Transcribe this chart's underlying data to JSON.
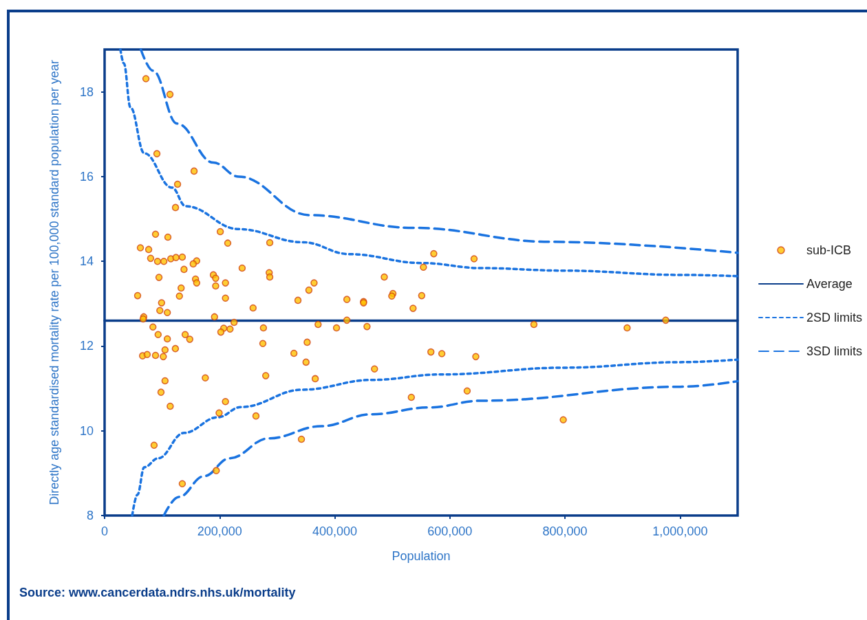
{
  "chart_data": {
    "type": "scatter",
    "xlabel": "Population",
    "ylabel": "Directly age standardised mortality rate per 100,000 standard population per year",
    "xlim": [
      0,
      1100000
    ],
    "xticks": [
      0,
      {
        "value": 200000,
        "label": "200,000"
      },
      {
        "value": 400000,
        "label": "400,000"
      },
      {
        "value": 600000,
        "label": "600,000"
      },
      {
        "value": 800000,
        "label": "800,000"
      },
      {
        "value": 1000000,
        "label": "1,000,000"
      }
    ],
    "ylim": [
      8,
      19
    ],
    "yticks": [
      8,
      10,
      12,
      14,
      16,
      18
    ],
    "grid": false,
    "legend": "right",
    "annotations": [
      "Source: www.cancerdata.ndrs.nhs.uk/mortality"
    ],
    "series": [
      {
        "name": "sub-ICB",
        "marker": "circle",
        "color": "#ffc000",
        "x": [
          71800,
          113600,
          90900,
          155500,
          126800,
          123200,
          88500,
          110000,
          201000,
          214000,
          287000,
          62200,
          76600,
          572000,
          642000,
          80000,
          92000,
          103000,
          115000,
          124000,
          135000,
          160000,
          154000,
          138000,
          239000,
          189000,
          193000,
          286000,
          287000,
          94500,
          158000,
          160000,
          193000,
          210000,
          364000,
          355000,
          486000,
          554000,
          501000,
          499000,
          57400,
          133000,
          130000,
          210000,
          336000,
          421000,
          450000,
          450000,
          551000,
          99000,
          109000,
          96000,
          258000,
          536000,
          68000,
          67000,
          191000,
          421000,
          975000,
          225000,
          371000,
          746000,
          456000,
          403000,
          276000,
          207000,
          218000,
          908000,
          84000,
          202000,
          140000,
          93000,
          109000,
          148000,
          352000,
          275000,
          105000,
          123000,
          329000,
          567000,
          586000,
          66000,
          74000,
          88500,
          102000,
          645000,
          350000,
          469000,
          175000,
          366000,
          280000,
          105000,
          98000,
          630000,
          210000,
          114000,
          533000,
          263000,
          199000,
          797000,
          342000,
          86000,
          194000,
          135000
        ],
        "values": [
          18.31,
          17.94,
          16.54,
          16.13,
          15.82,
          15.27,
          14.64,
          14.57,
          14.7,
          14.43,
          14.44,
          14.32,
          14.28,
          14.18,
          14.06,
          14.07,
          14.0,
          14.0,
          14.06,
          14.09,
          14.1,
          14.01,
          13.94,
          13.81,
          13.84,
          13.68,
          13.6,
          13.73,
          13.63,
          13.62,
          13.58,
          13.49,
          13.42,
          13.49,
          13.49,
          13.32,
          13.63,
          13.86,
          13.24,
          13.18,
          13.19,
          13.37,
          13.18,
          13.13,
          13.08,
          13.1,
          13.05,
          13.02,
          13.19,
          13.02,
          12.79,
          12.84,
          12.9,
          12.89,
          12.69,
          12.64,
          12.69,
          12.61,
          12.61,
          12.56,
          12.51,
          12.51,
          12.46,
          12.43,
          12.43,
          12.42,
          12.4,
          12.43,
          12.45,
          12.33,
          12.27,
          12.27,
          12.17,
          12.16,
          12.09,
          12.06,
          11.91,
          11.94,
          11.83,
          11.86,
          11.82,
          11.77,
          11.8,
          11.78,
          11.75,
          11.75,
          11.62,
          11.46,
          11.25,
          11.23,
          11.3,
          11.18,
          10.91,
          10.94,
          10.69,
          10.58,
          10.79,
          10.35,
          10.42,
          10.26,
          9.8,
          9.66,
          9.06,
          8.75
        ]
      },
      {
        "name": "Average",
        "type": "line",
        "marker": "none",
        "color": "#0a3d8a",
        "line_style": "solid",
        "x": [
          0,
          1100000
        ],
        "values": [
          12.6,
          12.6
        ]
      },
      {
        "name": "2SD limits",
        "type": "line",
        "marker": "none",
        "color": "#1a73e0",
        "line_style": "dotted",
        "x": [
          27500,
          33500,
          45000,
          69000,
          117000,
          141000,
          233000,
          345000,
          425000,
          551000,
          655000,
          800000,
          1000000,
          1100000
        ],
        "values": [
          19.0,
          18.67,
          17.63,
          16.55,
          15.74,
          15.3,
          14.76,
          14.45,
          14.17,
          13.96,
          13.84,
          13.78,
          13.68,
          13.65
        ]
      },
      {
        "name": null,
        "type": "line",
        "marker": "none",
        "color": "#1a73e0",
        "line_style": "dotted",
        "x": [
          48000,
          57000,
          69000,
          93000,
          138000,
          197000,
          237000,
          344000,
          464000,
          584000,
          800000,
          1000000,
          1100000
        ],
        "values": [
          8.0,
          8.49,
          9.14,
          9.35,
          9.95,
          10.32,
          10.56,
          10.97,
          11.2,
          11.33,
          11.49,
          11.62,
          11.68
        ]
      },
      {
        "name": "3SD limits",
        "type": "line",
        "marker": "none",
        "color": "#1a73e0",
        "line_style": "dashed",
        "x": [
          63000,
          84000,
          126000,
          189000,
          233000,
          356000,
          536000,
          775000,
          1100000
        ],
        "values": [
          19.0,
          18.5,
          17.25,
          16.33,
          16.0,
          15.09,
          14.79,
          14.46,
          14.2
        ]
      },
      {
        "name": null,
        "type": "line",
        "marker": "none",
        "color": "#1a73e0",
        "line_style": "dashed",
        "x": [
          103000,
          129000,
          173000,
          217000,
          285000,
          377000,
          464000,
          563000,
          655000,
          1000000,
          1100000
        ],
        "values": [
          8.0,
          8.44,
          8.93,
          9.35,
          9.82,
          10.11,
          10.39,
          10.55,
          10.71,
          11.04,
          11.17
        ]
      }
    ]
  }
}
